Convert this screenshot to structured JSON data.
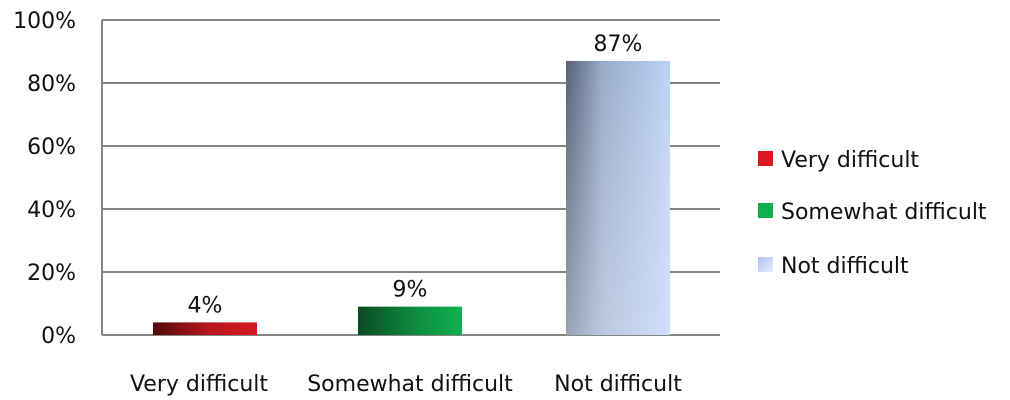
{
  "chart_data": {
    "type": "bar",
    "title": "",
    "xlabel": "",
    "ylabel": "",
    "categories": [
      "Very difficult",
      "Somewhat difficult",
      "Not difficult"
    ],
    "values": [
      4,
      9,
      87
    ],
    "data_labels": [
      "4%",
      "9%",
      "87%"
    ],
    "ylim": [
      0,
      100
    ],
    "y_ticks": [
      0,
      20,
      40,
      60,
      80,
      100
    ],
    "y_tick_labels": [
      "0%",
      "20%",
      "40%",
      "60%",
      "80%",
      "100%"
    ],
    "grid": true,
    "legend_position": "right",
    "legend": [
      {
        "label": "Very difficult",
        "color": "#d71920"
      },
      {
        "label": "Somewhat difficult",
        "color": "#10b04f"
      },
      {
        "label": "Not difficult",
        "color": "#bcd2f6"
      }
    ],
    "colors": {
      "grid": "#858585",
      "text": "#111111",
      "very_difficult_dark": "#4f0c0c",
      "very_difficult_light": "#d71920",
      "somewhat_difficult_dark": "#0a4b22",
      "somewhat_difficult_light": "#10b04f",
      "not_difficult_dark": "#556276",
      "not_difficult_light": "#bcd2f6",
      "not_difficult_bottom": "#e7eefc"
    }
  }
}
